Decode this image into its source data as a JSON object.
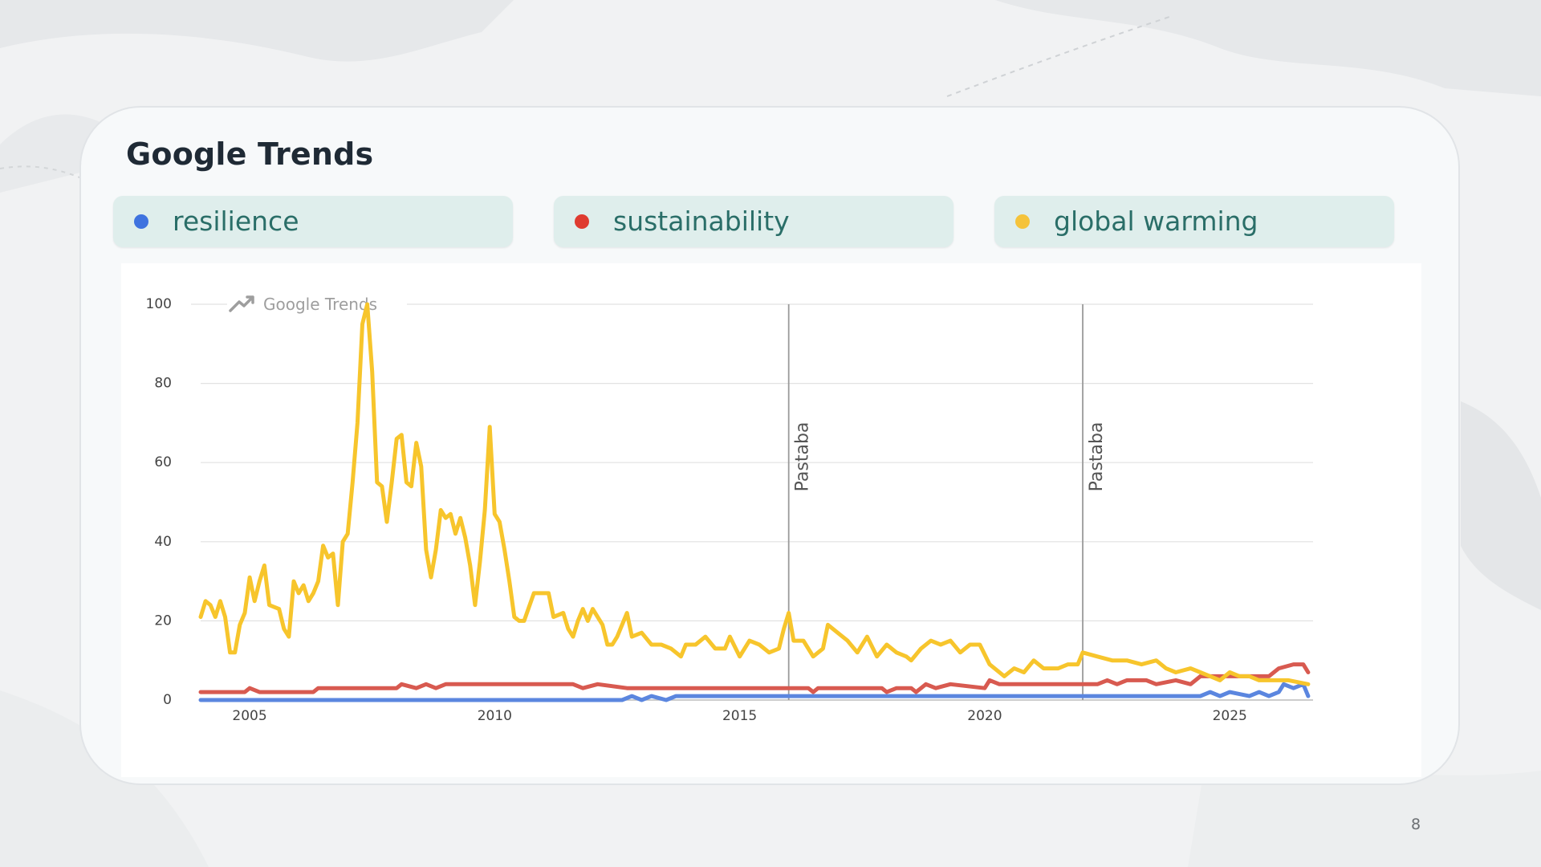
{
  "slide": {
    "title": "Google Trends",
    "page_number": "8"
  },
  "legend": [
    {
      "label": "resilience",
      "color": "#3f73df"
    },
    {
      "label": "sustainability",
      "color": "#df3b30"
    },
    {
      "label": "global warming",
      "color": "#f5c33b"
    }
  ],
  "chart_data": {
    "type": "line",
    "watermark": "Google Trends",
    "xlim": [
      2004.0,
      2026.7
    ],
    "ylim": [
      0,
      100
    ],
    "yticks": [
      0,
      20,
      40,
      60,
      80,
      100
    ],
    "xticks": [
      2005,
      2010,
      2015,
      2020,
      2025
    ],
    "grid": true,
    "annotations": [
      {
        "x": 2016.0,
        "label": "Pastaba"
      },
      {
        "x": 2022.0,
        "label": "Pastaba"
      }
    ],
    "series": [
      {
        "name": "resilience",
        "color": "#5b86df",
        "points": [
          [
            2004.0,
            0
          ],
          [
            2012.6,
            0
          ],
          [
            2012.8,
            1
          ],
          [
            2013.0,
            0
          ],
          [
            2013.2,
            1
          ],
          [
            2013.5,
            0
          ],
          [
            2013.7,
            1
          ],
          [
            2024.4,
            1
          ],
          [
            2024.6,
            2
          ],
          [
            2024.8,
            1
          ],
          [
            2025.0,
            2
          ],
          [
            2025.4,
            1
          ],
          [
            2025.6,
            2
          ],
          [
            2025.8,
            1
          ],
          [
            2026.0,
            2
          ],
          [
            2026.1,
            4
          ],
          [
            2026.3,
            3
          ],
          [
            2026.5,
            4
          ],
          [
            2026.6,
            1
          ]
        ]
      },
      {
        "name": "sustainability",
        "color": "#d85a50",
        "points": [
          [
            2004.0,
            2
          ],
          [
            2004.9,
            2
          ],
          [
            2005.0,
            3
          ],
          [
            2005.2,
            2
          ],
          [
            2006.3,
            2
          ],
          [
            2006.4,
            3
          ],
          [
            2008.0,
            3
          ],
          [
            2008.1,
            4
          ],
          [
            2008.4,
            3
          ],
          [
            2008.6,
            4
          ],
          [
            2008.8,
            3
          ],
          [
            2009.0,
            4
          ],
          [
            2011.6,
            4
          ],
          [
            2011.8,
            3
          ],
          [
            2012.1,
            4
          ],
          [
            2012.7,
            3
          ],
          [
            2016.4,
            3
          ],
          [
            2016.5,
            2
          ],
          [
            2016.6,
            3
          ],
          [
            2017.9,
            3
          ],
          [
            2018.0,
            2
          ],
          [
            2018.2,
            3
          ],
          [
            2018.5,
            3
          ],
          [
            2018.6,
            2
          ],
          [
            2018.8,
            4
          ],
          [
            2019.0,
            3
          ],
          [
            2019.3,
            4
          ],
          [
            2020.0,
            3
          ],
          [
            2020.1,
            5
          ],
          [
            2020.3,
            4
          ],
          [
            2022.3,
            4
          ],
          [
            2022.5,
            5
          ],
          [
            2022.7,
            4
          ],
          [
            2022.9,
            5
          ],
          [
            2023.3,
            5
          ],
          [
            2023.5,
            4
          ],
          [
            2023.9,
            5
          ],
          [
            2024.2,
            4
          ],
          [
            2024.4,
            6
          ],
          [
            2025.8,
            6
          ],
          [
            2026.0,
            8
          ],
          [
            2026.3,
            9
          ],
          [
            2026.5,
            9
          ],
          [
            2026.6,
            7
          ]
        ]
      },
      {
        "name": "global warming",
        "color": "#f7c52c",
        "points": [
          [
            2004.0,
            21
          ],
          [
            2004.1,
            25
          ],
          [
            2004.2,
            24
          ],
          [
            2004.3,
            21
          ],
          [
            2004.4,
            25
          ],
          [
            2004.5,
            21
          ],
          [
            2004.6,
            12
          ],
          [
            2004.7,
            12
          ],
          [
            2004.8,
            19
          ],
          [
            2004.9,
            22
          ],
          [
            2005.0,
            31
          ],
          [
            2005.1,
            25
          ],
          [
            2005.2,
            30
          ],
          [
            2005.3,
            34
          ],
          [
            2005.4,
            24
          ],
          [
            2005.6,
            23
          ],
          [
            2005.7,
            18
          ],
          [
            2005.8,
            16
          ],
          [
            2005.9,
            30
          ],
          [
            2006.0,
            27
          ],
          [
            2006.1,
            29
          ],
          [
            2006.2,
            25
          ],
          [
            2006.3,
            27
          ],
          [
            2006.4,
            30
          ],
          [
            2006.5,
            39
          ],
          [
            2006.6,
            36
          ],
          [
            2006.7,
            37
          ],
          [
            2006.8,
            24
          ],
          [
            2006.9,
            40
          ],
          [
            2007.0,
            42
          ],
          [
            2007.1,
            55
          ],
          [
            2007.2,
            70
          ],
          [
            2007.3,
            95
          ],
          [
            2007.4,
            100
          ],
          [
            2007.5,
            83
          ],
          [
            2007.6,
            55
          ],
          [
            2007.7,
            54
          ],
          [
            2007.8,
            45
          ],
          [
            2007.9,
            55
          ],
          [
            2008.0,
            66
          ],
          [
            2008.1,
            67
          ],
          [
            2008.2,
            55
          ],
          [
            2008.3,
            54
          ],
          [
            2008.4,
            65
          ],
          [
            2008.5,
            59
          ],
          [
            2008.6,
            38
          ],
          [
            2008.7,
            31
          ],
          [
            2008.8,
            38
          ],
          [
            2008.9,
            48
          ],
          [
            2009.0,
            46
          ],
          [
            2009.1,
            47
          ],
          [
            2009.2,
            42
          ],
          [
            2009.3,
            46
          ],
          [
            2009.4,
            41
          ],
          [
            2009.5,
            34
          ],
          [
            2009.6,
            24
          ],
          [
            2009.7,
            35
          ],
          [
            2009.8,
            48
          ],
          [
            2009.9,
            69
          ],
          [
            2010.0,
            47
          ],
          [
            2010.1,
            45
          ],
          [
            2010.2,
            38
          ],
          [
            2010.3,
            30
          ],
          [
            2010.4,
            21
          ],
          [
            2010.5,
            20
          ],
          [
            2010.6,
            20
          ],
          [
            2010.8,
            27
          ],
          [
            2011.1,
            27
          ],
          [
            2011.2,
            21
          ],
          [
            2011.4,
            22
          ],
          [
            2011.5,
            18
          ],
          [
            2011.6,
            16
          ],
          [
            2011.7,
            20
          ],
          [
            2011.8,
            23
          ],
          [
            2011.9,
            20
          ],
          [
            2012.0,
            23
          ],
          [
            2012.2,
            19
          ],
          [
            2012.3,
            14
          ],
          [
            2012.4,
            14
          ],
          [
            2012.5,
            16
          ],
          [
            2012.7,
            22
          ],
          [
            2012.8,
            16
          ],
          [
            2013.0,
            17
          ],
          [
            2013.2,
            14
          ],
          [
            2013.4,
            14
          ],
          [
            2013.6,
            13
          ],
          [
            2013.8,
            11
          ],
          [
            2013.9,
            14
          ],
          [
            2014.1,
            14
          ],
          [
            2014.3,
            16
          ],
          [
            2014.5,
            13
          ],
          [
            2014.7,
            13
          ],
          [
            2014.8,
            16
          ],
          [
            2015.0,
            11
          ],
          [
            2015.1,
            13
          ],
          [
            2015.2,
            15
          ],
          [
            2015.4,
            14
          ],
          [
            2015.6,
            12
          ],
          [
            2015.8,
            13
          ],
          [
            2015.9,
            18
          ],
          [
            2016.0,
            22
          ],
          [
            2016.1,
            15
          ],
          [
            2016.3,
            15
          ],
          [
            2016.5,
            11
          ],
          [
            2016.7,
            13
          ],
          [
            2016.8,
            19
          ],
          [
            2017.0,
            17
          ],
          [
            2017.2,
            15
          ],
          [
            2017.4,
            12
          ],
          [
            2017.6,
            16
          ],
          [
            2017.8,
            11
          ],
          [
            2018.0,
            14
          ],
          [
            2018.2,
            12
          ],
          [
            2018.4,
            11
          ],
          [
            2018.5,
            10
          ],
          [
            2018.7,
            13
          ],
          [
            2018.9,
            15
          ],
          [
            2019.1,
            14
          ],
          [
            2019.3,
            15
          ],
          [
            2019.5,
            12
          ],
          [
            2019.7,
            14
          ],
          [
            2019.9,
            14
          ],
          [
            2020.1,
            9
          ],
          [
            2020.4,
            6
          ],
          [
            2020.6,
            8
          ],
          [
            2020.8,
            7
          ],
          [
            2021.0,
            10
          ],
          [
            2021.2,
            8
          ],
          [
            2021.5,
            8
          ],
          [
            2021.7,
            9
          ],
          [
            2021.9,
            9
          ],
          [
            2022.0,
            12
          ],
          [
            2022.3,
            11
          ],
          [
            2022.6,
            10
          ],
          [
            2022.9,
            10
          ],
          [
            2023.2,
            9
          ],
          [
            2023.5,
            10
          ],
          [
            2023.7,
            8
          ],
          [
            2023.9,
            7
          ],
          [
            2024.2,
            8
          ],
          [
            2024.4,
            7
          ],
          [
            2024.6,
            6
          ],
          [
            2024.8,
            5
          ],
          [
            2025.0,
            7
          ],
          [
            2025.2,
            6
          ],
          [
            2025.4,
            6
          ],
          [
            2025.6,
            5
          ],
          [
            2025.9,
            5
          ],
          [
            2026.2,
            5
          ],
          [
            2026.6,
            4
          ]
        ]
      }
    ]
  }
}
